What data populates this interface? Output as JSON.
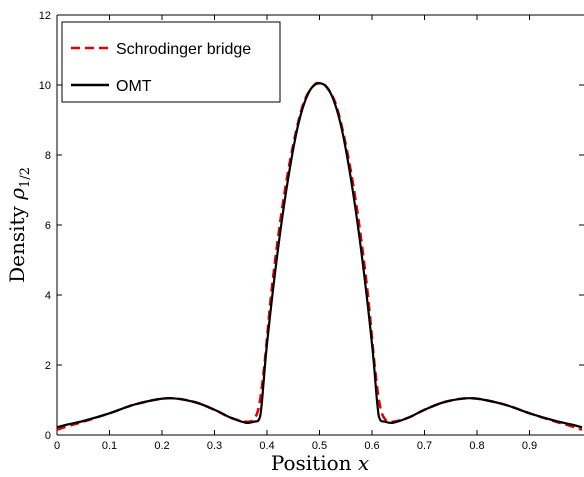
{
  "chart_data": {
    "type": "line",
    "xlabel": "Position x",
    "ylabel": "Density ρ1/2",
    "xlim": [
      0,
      1
    ],
    "ylim": [
      0,
      12
    ],
    "x_ticks": [
      "0",
      "0.1",
      "0.2",
      "0.3",
      "0.4",
      "0.5",
      "0.6",
      "0.7",
      "0.8",
      "0.9"
    ],
    "y_ticks": [
      "0",
      "2",
      "4",
      "6",
      "8",
      "10",
      "12"
    ],
    "grid": false,
    "legend_position": "top-left",
    "series": [
      {
        "name": "Schrodinger bridge",
        "color": "#e00000",
        "style": "dashed",
        "x": [
          0,
          0.02,
          0.05,
          0.1,
          0.15,
          0.21,
          0.26,
          0.3,
          0.33,
          0.36,
          0.375,
          0.385,
          0.395,
          0.41,
          0.43,
          0.45,
          0.47,
          0.49,
          0.5,
          0.51,
          0.53,
          0.55,
          0.57,
          0.59,
          0.605,
          0.615,
          0.625,
          0.64,
          0.67,
          0.7,
          0.74,
          0.79,
          0.85,
          0.9,
          0.95,
          0.98,
          1.0
        ],
        "y": [
          0.15,
          0.25,
          0.38,
          0.62,
          0.88,
          1.05,
          0.95,
          0.72,
          0.5,
          0.38,
          0.45,
          0.85,
          2.0,
          4.3,
          6.6,
          8.3,
          9.5,
          10.0,
          10.05,
          10.0,
          9.5,
          8.3,
          6.6,
          4.3,
          2.0,
          0.85,
          0.45,
          0.38,
          0.5,
          0.72,
          0.95,
          1.05,
          0.88,
          0.62,
          0.38,
          0.25,
          0.15
        ]
      },
      {
        "name": "OMT",
        "color": "#000000",
        "style": "solid",
        "x": [
          0,
          0.02,
          0.05,
          0.1,
          0.15,
          0.21,
          0.26,
          0.3,
          0.33,
          0.36,
          0.375,
          0.385,
          0.39,
          0.4,
          0.42,
          0.44,
          0.46,
          0.48,
          0.5,
          0.52,
          0.54,
          0.56,
          0.58,
          0.6,
          0.61,
          0.615,
          0.625,
          0.64,
          0.67,
          0.7,
          0.74,
          0.79,
          0.85,
          0.9,
          0.95,
          0.98,
          1.0
        ],
        "y": [
          0.22,
          0.3,
          0.4,
          0.62,
          0.88,
          1.05,
          0.95,
          0.72,
          0.5,
          0.35,
          0.38,
          0.45,
          0.9,
          2.6,
          5.2,
          7.3,
          8.9,
          9.8,
          10.05,
          9.8,
          8.9,
          7.3,
          5.2,
          2.6,
          0.9,
          0.45,
          0.38,
          0.35,
          0.5,
          0.72,
          0.95,
          1.05,
          0.88,
          0.62,
          0.4,
          0.3,
          0.22
        ]
      }
    ]
  }
}
